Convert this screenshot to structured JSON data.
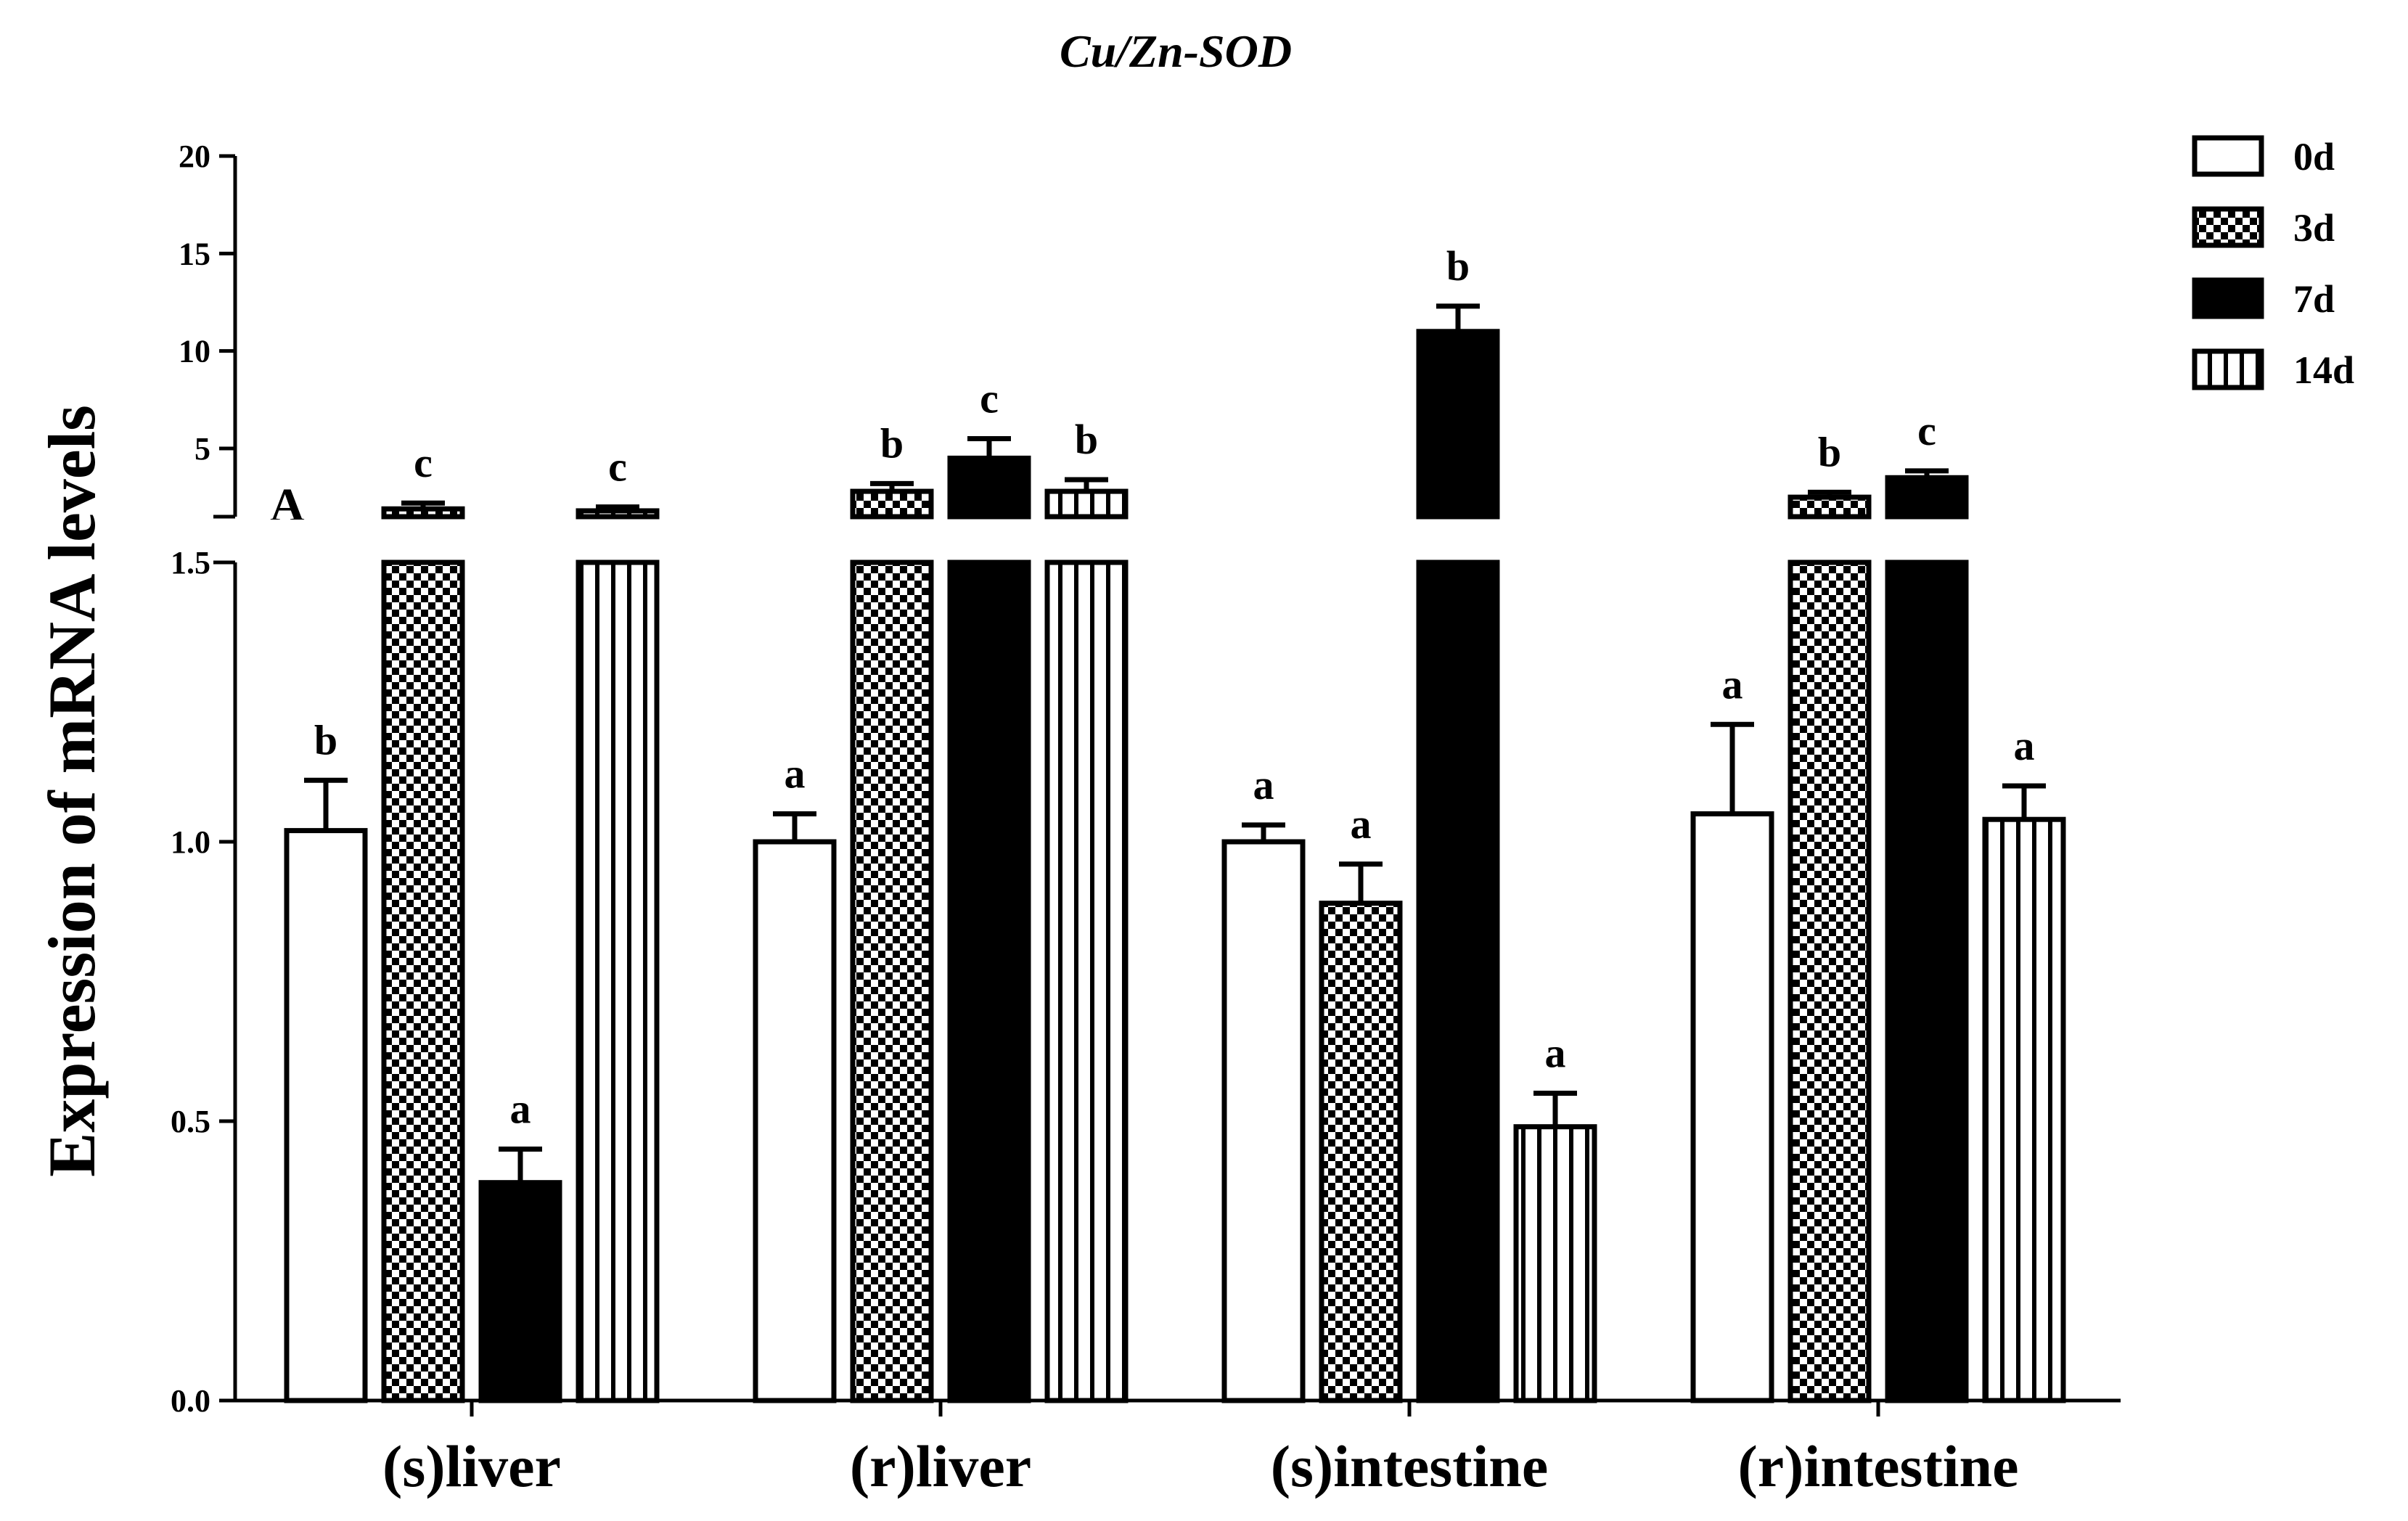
{
  "chart_data": {
    "type": "bar",
    "title": "Cu/Zn-SOD",
    "panel_label": "A",
    "xlabel": "",
    "ylabel": "Expression of mRNA levels",
    "categories": [
      "(s)liver",
      "(r)liver",
      "(s)intestine",
      "(r)intestine"
    ],
    "axis_break": {
      "lower_range": [
        0,
        1.5
      ],
      "upper_range": [
        1.5,
        20
      ]
    },
    "lower_ticks": [
      "0.0",
      "0.5",
      "1.0",
      "1.5"
    ],
    "upper_ticks": [
      "5",
      "10",
      "15",
      "20"
    ],
    "legend_position": "top-right",
    "series": [
      {
        "name": "0d",
        "pattern": "open",
        "values": [
          1.02,
          1.0,
          1.0,
          1.05
        ],
        "errors": [
          0.09,
          0.05,
          0.03,
          0.16
        ],
        "labels": [
          "b",
          "a",
          "a",
          "a"
        ]
      },
      {
        "name": "3d",
        "pattern": "checker",
        "values": [
          1.9,
          2.8,
          0.89,
          2.5
        ],
        "errors": [
          0.3,
          0.4,
          0.07,
          0.25
        ],
        "labels": [
          "c",
          "b",
          "a",
          "b"
        ]
      },
      {
        "name": "7d",
        "pattern": "solid",
        "values": [
          0.39,
          4.5,
          11.0,
          3.5
        ],
        "errors": [
          0.06,
          1.0,
          1.3,
          0.35
        ],
        "labels": [
          "a",
          "c",
          "b",
          "c"
        ]
      },
      {
        "name": "14d",
        "pattern": "vstripes",
        "values": [
          1.8,
          2.8,
          0.49,
          1.04
        ],
        "errors": [
          0.2,
          0.6,
          0.06,
          0.06
        ],
        "labels": [
          "c",
          "b",
          "a",
          "a"
        ]
      }
    ]
  }
}
